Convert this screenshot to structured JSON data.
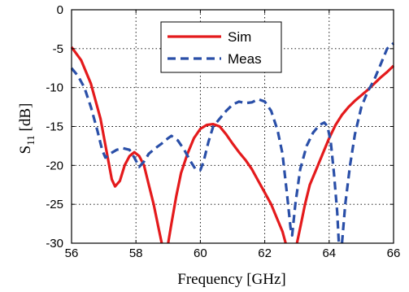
{
  "chart_data": {
    "type": "line",
    "xlabel": "Frequency [GHz]",
    "ylabel_main": "S",
    "ylabel_sub": "11",
    "ylabel_unit": " [dB]",
    "xlim": [
      56,
      66
    ],
    "ylim": [
      -30,
      0
    ],
    "xticks": [
      56,
      58,
      60,
      62,
      64,
      66
    ],
    "yticks": [
      0,
      -5,
      -10,
      -15,
      -20,
      -25,
      -30
    ],
    "xtick_labels": [
      "56",
      "58",
      "60",
      "62",
      "64",
      "66"
    ],
    "ytick_labels": [
      "0",
      "-5",
      "-10",
      "-15",
      "-20",
      "-25",
      "-30"
    ],
    "grid": true,
    "legend_position": "top-center",
    "series": [
      {
        "name": "Sim",
        "color": "#e41a1c",
        "style": "solid",
        "segments": [
          [
            [
              56.0,
              -4.8
            ],
            [
              56.3,
              -6.5
            ],
            [
              56.6,
              -9.5
            ],
            [
              56.9,
              -14.0
            ],
            [
              57.1,
              -18.5
            ],
            [
              57.25,
              -21.8
            ],
            [
              57.35,
              -22.7
            ],
            [
              57.5,
              -22.0
            ],
            [
              57.65,
              -20.0
            ],
            [
              57.8,
              -18.8
            ],
            [
              57.95,
              -18.3
            ],
            [
              58.1,
              -18.8
            ],
            [
              58.25,
              -20.0
            ],
            [
              58.4,
              -22.5
            ],
            [
              58.55,
              -25.0
            ],
            [
              58.7,
              -28.0
            ],
            [
              58.8,
              -30.0
            ]
          ],
          [
            [
              59.0,
              -30.0
            ],
            [
              59.1,
              -27.5
            ],
            [
              59.25,
              -24.0
            ],
            [
              59.4,
              -21.0
            ],
            [
              59.6,
              -18.5
            ],
            [
              59.8,
              -16.5
            ],
            [
              60.0,
              -15.3
            ],
            [
              60.2,
              -14.8
            ],
            [
              60.4,
              -14.7
            ],
            [
              60.6,
              -15.0
            ],
            [
              60.8,
              -16.0
            ],
            [
              61.0,
              -17.2
            ],
            [
              61.2,
              -18.3
            ],
            [
              61.4,
              -19.3
            ],
            [
              61.6,
              -20.5
            ],
            [
              61.8,
              -22.0
            ],
            [
              62.0,
              -23.5
            ],
            [
              62.2,
              -25.0
            ],
            [
              62.4,
              -27.0
            ],
            [
              62.55,
              -28.5
            ],
            [
              62.65,
              -30.0
            ]
          ],
          [
            [
              63.0,
              -30.0
            ],
            [
              63.1,
              -28.0
            ],
            [
              63.25,
              -25.0
            ],
            [
              63.4,
              -22.5
            ],
            [
              63.6,
              -20.5
            ],
            [
              63.8,
              -18.5
            ],
            [
              64.0,
              -16.5
            ],
            [
              64.2,
              -14.8
            ],
            [
              64.4,
              -13.5
            ],
            [
              64.6,
              -12.5
            ],
            [
              64.8,
              -11.7
            ],
            [
              65.0,
              -11.0
            ],
            [
              65.2,
              -10.3
            ],
            [
              65.4,
              -9.5
            ],
            [
              65.6,
              -8.7
            ],
            [
              65.8,
              -8.0
            ],
            [
              66.0,
              -7.2
            ]
          ]
        ]
      },
      {
        "name": "Meas",
        "color": "#2a4fa8",
        "style": "dashed",
        "segments": [
          [
            [
              56.0,
              -7.5
            ],
            [
              56.2,
              -8.5
            ],
            [
              56.4,
              -10.0
            ],
            [
              56.6,
              -12.5
            ],
            [
              56.8,
              -15.5
            ],
            [
              56.95,
              -18.0
            ],
            [
              57.05,
              -19.0
            ],
            [
              57.2,
              -18.5
            ],
            [
              57.4,
              -18.0
            ],
            [
              57.6,
              -17.8
            ],
            [
              57.8,
              -18.0
            ],
            [
              57.95,
              -19.0
            ],
            [
              58.1,
              -20.2
            ],
            [
              58.25,
              -19.5
            ],
            [
              58.4,
              -18.5
            ],
            [
              58.6,
              -17.8
            ],
            [
              58.8,
              -17.2
            ],
            [
              59.0,
              -16.5
            ],
            [
              59.1,
              -16.2
            ],
            [
              59.3,
              -16.8
            ],
            [
              59.5,
              -18.0
            ],
            [
              59.7,
              -19.5
            ],
            [
              59.85,
              -20.5
            ],
            [
              60.0,
              -20.6
            ],
            [
              60.1,
              -19.5
            ],
            [
              60.25,
              -17.0
            ],
            [
              60.4,
              -15.0
            ],
            [
              60.6,
              -14.0
            ],
            [
              60.8,
              -13.0
            ],
            [
              61.0,
              -12.2
            ],
            [
              61.2,
              -11.8
            ],
            [
              61.4,
              -12.0
            ],
            [
              61.6,
              -11.9
            ],
            [
              61.8,
              -11.5
            ],
            [
              62.0,
              -11.8
            ],
            [
              62.2,
              -13.0
            ],
            [
              62.4,
              -15.5
            ],
            [
              62.55,
              -18.5
            ],
            [
              62.7,
              -24.0
            ],
            [
              62.8,
              -28.0
            ],
            [
              62.85,
              -29.0
            ],
            [
              62.95,
              -25.0
            ],
            [
              63.1,
              -20.5
            ],
            [
              63.3,
              -17.5
            ],
            [
              63.5,
              -15.8
            ],
            [
              63.7,
              -14.8
            ],
            [
              63.85,
              -14.5
            ],
            [
              63.95,
              -15.0
            ],
            [
              64.05,
              -17.0
            ],
            [
              64.15,
              -21.0
            ],
            [
              64.25,
              -26.0
            ],
            [
              64.3,
              -30.0
            ]
          ],
          [
            [
              64.4,
              -30.0
            ],
            [
              64.5,
              -25.0
            ],
            [
              64.65,
              -20.0
            ],
            [
              64.8,
              -16.0
            ],
            [
              65.0,
              -12.5
            ],
            [
              65.2,
              -10.5
            ],
            [
              65.4,
              -9.0
            ],
            [
              65.6,
              -7.0
            ],
            [
              65.8,
              -5.0
            ],
            [
              66.0,
              -4.3
            ]
          ]
        ]
      }
    ]
  }
}
